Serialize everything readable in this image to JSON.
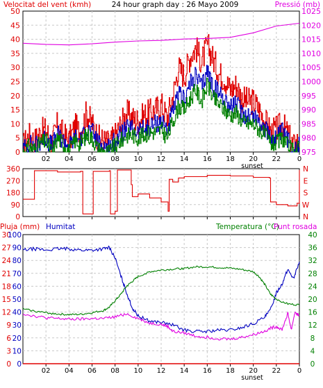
{
  "header": {
    "left_label": "Velocitat del vent (kmh)",
    "title": "24 hour graph day : 26 Mayo 2009",
    "right_label": "Pressió (mb)"
  },
  "colors": {
    "red": "#e00000",
    "blue": "#0000c0",
    "green": "#008000",
    "magenta": "#e000e0",
    "grid": "#c8c8c8",
    "frame": "#000000",
    "panel_bg": "#ffffff"
  },
  "x_axis": {
    "ticks": [
      "02",
      "04",
      "06",
      "08",
      "10",
      "12",
      "14",
      "16",
      "18",
      "20",
      "22",
      "0"
    ],
    "sunset_label": "sunset",
    "sunset_hour": 19.9
  },
  "panel3": {
    "left_label_red": "Pluja (mm)",
    "left_label_blue": "Humitat",
    "right_label_green": "Temperatura (°C)",
    "right_label_magenta": "Punt rosada"
  },
  "chart_data": [
    {
      "type": "line",
      "title": "Velocitat del vent (kmh) / Pressió (mb)",
      "xlabel": "",
      "x_range": [
        0,
        24
      ],
      "y_left": {
        "label": "Velocitat del vent (kmh)",
        "ticks": [
          0,
          5,
          10,
          15,
          20,
          25,
          30,
          35,
          40,
          45,
          50
        ],
        "ylim": [
          0,
          50
        ]
      },
      "y_right": {
        "label": "Pressió (mb)",
        "ticks": [
          975,
          980,
          985,
          990,
          995,
          1000,
          1005,
          1010,
          1015,
          1020,
          1025
        ],
        "ylim": [
          975,
          1025
        ]
      },
      "grid": true,
      "series": [
        {
          "name": "",
          "color": "#e00000",
          "axis": "left",
          "x": [
            0,
            0.5,
            1,
            1.5,
            2,
            2.5,
            3,
            3.5,
            4,
            4.5,
            5,
            5.5,
            6,
            6.5,
            7,
            7.5,
            8,
            8.5,
            9,
            9.5,
            10,
            10.5,
            11,
            11.5,
            12,
            12.5,
            13,
            13.5,
            14,
            14.5,
            15,
            15.5,
            16,
            16.5,
            17,
            17.5,
            18,
            18.5,
            19,
            19.5,
            20,
            20.5,
            21,
            21.5,
            22,
            22.5,
            23,
            23.5,
            24
          ],
          "y": [
            2,
            6,
            4,
            7,
            8,
            3,
            10,
            6,
            4,
            9,
            7,
            14,
            10,
            5,
            4,
            3,
            6,
            10,
            14,
            12,
            11,
            13,
            14,
            15,
            17,
            12,
            20,
            30,
            27,
            34,
            37,
            32,
            38,
            33,
            28,
            26,
            22,
            24,
            19,
            18,
            18,
            15,
            11,
            7,
            8,
            10,
            6,
            2,
            5
          ]
        },
        {
          "name": "",
          "color": "#0000c0",
          "axis": "left",
          "x": [
            0,
            0.5,
            1,
            1.5,
            2,
            2.5,
            3,
            3.5,
            4,
            4.5,
            5,
            5.5,
            6,
            6.5,
            7,
            7.5,
            8,
            8.5,
            9,
            9.5,
            10,
            10.5,
            11,
            11.5,
            12,
            12.5,
            13,
            13.5,
            14,
            14.5,
            15,
            15.5,
            16,
            16.5,
            17,
            17.5,
            18,
            18.5,
            19,
            19.5,
            20,
            20.5,
            21,
            21.5,
            22,
            22.5,
            23,
            23.5,
            24
          ],
          "y": [
            1,
            3,
            2,
            4,
            5,
            2,
            6,
            4,
            2,
            5,
            4,
            8,
            7,
            3,
            2,
            2,
            4,
            6,
            8,
            8,
            7,
            8,
            9,
            10,
            11,
            8,
            14,
            20,
            19,
            24,
            27,
            23,
            29,
            23,
            21,
            19,
            16,
            17,
            14,
            13,
            13,
            11,
            8,
            5,
            5,
            7,
            4,
            1,
            3
          ]
        },
        {
          "name": "",
          "color": "#008000",
          "axis": "left",
          "x": [
            0,
            0.5,
            1,
            1.5,
            2,
            2.5,
            3,
            3.5,
            4,
            4.5,
            5,
            5.5,
            6,
            6.5,
            7,
            7.5,
            8,
            8.5,
            9,
            9.5,
            10,
            10.5,
            11,
            11.5,
            12,
            12.5,
            13,
            13.5,
            14,
            14.5,
            15,
            15.5,
            16,
            16.5,
            17,
            17.5,
            18,
            18.5,
            19,
            19.5,
            20,
            20.5,
            21,
            21.5,
            22,
            22.5,
            23,
            23.5,
            24
          ],
          "y": [
            0,
            2,
            1,
            3,
            4,
            0,
            5,
            3,
            0,
            4,
            3,
            6,
            5,
            1,
            0,
            0,
            2,
            4,
            6,
            6,
            5,
            6,
            7,
            7,
            8,
            5,
            11,
            16,
            15,
            19,
            22,
            18,
            24,
            19,
            17,
            15,
            13,
            14,
            11,
            10,
            10,
            8,
            6,
            3,
            3,
            5,
            2,
            0,
            2
          ]
        },
        {
          "name": "",
          "color": "#e000e0",
          "axis": "right",
          "x": [
            0,
            2,
            4,
            6,
            8,
            10,
            12,
            14,
            16,
            18,
            20,
            22,
            24
          ],
          "y": [
            1013.6,
            1013.2,
            1013,
            1013.4,
            1014,
            1014.4,
            1014.6,
            1015.1,
            1015.3,
            1015.7,
            1017.3,
            1019.7,
            1020.7
          ]
        }
      ]
    },
    {
      "type": "line",
      "title": "Direcció del vent",
      "x_range": [
        0,
        24
      ],
      "y_left": {
        "label": "",
        "ticks": [
          0,
          90,
          180,
          270,
          360
        ],
        "ylim": [
          0,
          360
        ]
      },
      "y_right": {
        "label": "",
        "ticks": [
          "N",
          "W",
          "S",
          "E",
          "N"
        ]
      },
      "grid": true,
      "series": [
        {
          "name": "",
          "color": "#e00000",
          "axis": "left",
          "x": [
            0,
            0.9,
            1,
            3,
            5,
            5.2,
            6,
            6.1,
            7.5,
            7.6,
            8,
            8.2,
            9.4,
            9.5,
            10,
            11,
            12,
            12.6,
            12.7,
            13,
            13.5,
            14,
            16,
            18,
            20,
            21.4,
            21.5,
            22,
            23,
            23.8,
            24
          ],
          "y": [
            130,
            130,
            345,
            335,
            340,
            20,
            20,
            340,
            345,
            20,
            40,
            350,
            240,
            150,
            170,
            140,
            110,
            40,
            280,
            260,
            290,
            300,
            310,
            305,
            295,
            290,
            110,
            90,
            80,
            100,
            350
          ]
        }
      ]
    },
    {
      "type": "line",
      "title": "Pluja (mm) / Humitat / Temperatura (°C) / Punt rosada",
      "x_range": [
        0,
        24
      ],
      "y_left": {
        "label": "Pluja (mm)",
        "ticks": [
          0,
          3,
          6,
          9,
          12,
          15,
          18,
          21,
          24,
          27,
          30
        ],
        "ylim": [
          0,
          30
        ]
      },
      "y_left2": {
        "label": "Humitat",
        "ticks": [
          0,
          10,
          20,
          30,
          40,
          50,
          60,
          70,
          80,
          90,
          100
        ],
        "ylim": [
          0,
          100
        ]
      },
      "y_right": {
        "label": "Temperatura (°C)",
        "ticks": [
          0,
          4,
          8,
          12,
          16,
          20,
          24,
          28,
          32,
          36,
          40
        ],
        "ylim": [
          0,
          40
        ]
      },
      "grid": true,
      "series": [
        {
          "name": "Pluja (mm)",
          "color": "#e00000",
          "axis": "left",
          "x": [
            0,
            24
          ],
          "y": [
            0,
            0
          ]
        },
        {
          "name": "Humitat",
          "color": "#0000c0",
          "axis": "left2",
          "x": [
            0,
            1,
            2,
            3,
            4,
            5,
            6,
            7,
            7.5,
            8,
            8.5,
            9,
            9.5,
            10,
            11,
            12,
            13,
            14,
            15,
            16,
            17,
            18,
            19,
            20,
            21,
            21.5,
            22,
            22.5,
            23,
            23.5,
            24
          ],
          "y": [
            88,
            89,
            88,
            89,
            89,
            88,
            88,
            89,
            90,
            82,
            68,
            55,
            43,
            37,
            33,
            32,
            30,
            26,
            25,
            25,
            26,
            26,
            28,
            31,
            36,
            42,
            55,
            62,
            73,
            66,
            79
          ]
        },
        {
          "name": "Temperatura (°C)",
          "color": "#008000",
          "axis": "right",
          "x": [
            0,
            1,
            2,
            3,
            4,
            5,
            6,
            7,
            7.5,
            8,
            8.5,
            9,
            9.5,
            10,
            11,
            12,
            13,
            14,
            15,
            16,
            17,
            18,
            19,
            20,
            20.5,
            21,
            21.5,
            22,
            23,
            24
          ],
          "y": [
            17,
            16.3,
            15.8,
            15.4,
            15.2,
            15.3,
            15.8,
            16.5,
            17.5,
            19.5,
            21.5,
            24,
            25.5,
            27,
            28.5,
            29,
            29.3,
            29.5,
            30,
            30,
            29.8,
            29.6,
            29.2,
            28.5,
            27,
            24.5,
            21.5,
            20,
            18.5,
            18.2
          ]
        },
        {
          "name": "Punt rosada",
          "color": "#e000e0",
          "axis": "right",
          "x": [
            0,
            1,
            2,
            3,
            4,
            5,
            6,
            7,
            8,
            9,
            10,
            11,
            12,
            12.6,
            13,
            14,
            15,
            16,
            17,
            18,
            19,
            20,
            21,
            21.5,
            22,
            22.5,
            23,
            23.3,
            23.6,
            24
          ],
          "y": [
            15.5,
            14.8,
            14.2,
            14,
            13.8,
            13.8,
            14,
            14,
            14.5,
            15.5,
            14,
            12.6,
            12.2,
            11.5,
            10,
            9.5,
            8.6,
            8.2,
            7.8,
            7.6,
            8.2,
            9,
            10.1,
            11,
            11.5,
            10.6,
            15.6,
            10.5,
            15.8,
            15
          ]
        }
      ]
    }
  ]
}
